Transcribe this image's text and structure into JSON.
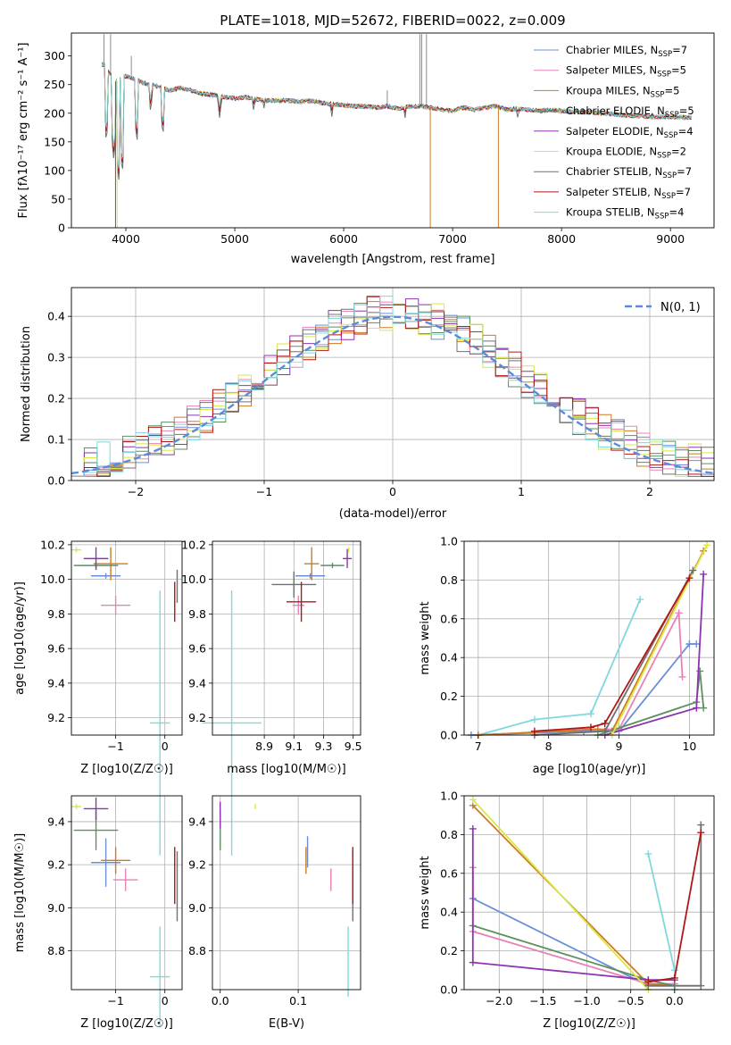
{
  "colors": {
    "chabrier_miles": "#6a8fd8",
    "salpeter_miles": "#e882b8",
    "kroupa_miles": "#cf7b22",
    "chabrier_elodie": "#5e8f5e",
    "salpeter_elodie": "#8e34b0",
    "kroupa_elodie": "#d8e84a",
    "chabrier_stelib": "#707070",
    "salpeter_stelib": "#b01818",
    "kroupa_stelib": "#7fd8dc",
    "grid": "#b0b0b0",
    "normal": "#5b8bd9"
  },
  "chart_data": [
    {
      "id": "spectrum",
      "type": "line",
      "title": "PLATE=1018, MJD=52672, FIBERID=0022, z=0.009",
      "xlabel": "wavelength [Angstrom, rest frame]",
      "ylabel": "Flux [fλ10⁻¹⁷ erg cm⁻² s⁻¹ A⁻¹]",
      "xlim": [
        3500,
        9400
      ],
      "ylim": [
        0,
        340
      ],
      "xticks": [
        4000,
        5000,
        6000,
        7000,
        8000,
        9000
      ],
      "yticks": [
        0,
        50,
        100,
        150,
        200,
        250,
        300
      ],
      "legend_position": "upper right",
      "legend": [
        {
          "label": "Chabrier MILES, N",
          "sub": "SSP",
          "suffix": "=7",
          "color_key": "chabrier_miles"
        },
        {
          "label": "Salpeter MILES, N",
          "sub": "SSP",
          "suffix": "=5",
          "color_key": "salpeter_miles"
        },
        {
          "label": "Kroupa MILES, N",
          "sub": "SSP",
          "suffix": "=5",
          "color_key": "kroupa_miles"
        },
        {
          "label": "Chabrier ELODIE, N",
          "sub": "SSP",
          "suffix": "=5",
          "color_key": "chabrier_elodie"
        },
        {
          "label": "Salpeter ELODIE, N",
          "sub": "SSP",
          "suffix": "=4",
          "color_key": "salpeter_elodie"
        },
        {
          "label": "Kroupa ELODIE, N",
          "sub": "SSP",
          "suffix": "=2",
          "color_key": "kroupa_elodie"
        },
        {
          "label": "Chabrier STELIB, N",
          "sub": "SSP",
          "suffix": "=7",
          "color_key": "chabrier_stelib"
        },
        {
          "label": "Salpeter STELIB, N",
          "sub": "SSP",
          "suffix": "=7",
          "color_key": "salpeter_stelib"
        },
        {
          "label": "Kroupa STELIB, N",
          "sub": "SSP",
          "suffix": "=4",
          "color_key": "kroupa_stelib"
        }
      ],
      "continuum": [
        [
          3800,
          285
        ],
        [
          3900,
          255
        ],
        [
          4000,
          265
        ],
        [
          4100,
          258
        ],
        [
          4200,
          250
        ],
        [
          4300,
          247
        ],
        [
          4400,
          240
        ],
        [
          4500,
          244
        ],
        [
          4600,
          240
        ],
        [
          4700,
          234
        ],
        [
          4800,
          232
        ],
        [
          4900,
          228
        ],
        [
          5000,
          226
        ],
        [
          5100,
          228
        ],
        [
          5200,
          224
        ],
        [
          5300,
          222
        ],
        [
          5400,
          222
        ],
        [
          5500,
          222
        ],
        [
          5600,
          220
        ],
        [
          5700,
          222
        ],
        [
          5800,
          218
        ],
        [
          5900,
          216
        ],
        [
          6000,
          214
        ],
        [
          6100,
          212
        ],
        [
          6200,
          212
        ],
        [
          6300,
          210
        ],
        [
          6400,
          212
        ],
        [
          6500,
          208
        ],
        [
          6600,
          212
        ],
        [
          6700,
          212
        ],
        [
          6800,
          210
        ],
        [
          6900,
          206
        ],
        [
          7000,
          204
        ],
        [
          7100,
          210
        ],
        [
          7200,
          206
        ],
        [
          7300,
          210
        ],
        [
          7400,
          212
        ],
        [
          7500,
          206
        ],
        [
          7600,
          208
        ],
        [
          7700,
          206
        ],
        [
          7800,
          204
        ],
        [
          7900,
          206
        ],
        [
          8000,
          204
        ],
        [
          8200,
          202
        ],
        [
          8400,
          200
        ],
        [
          8600,
          196
        ],
        [
          8800,
          194
        ],
        [
          9000,
          194
        ],
        [
          9200,
          192
        ]
      ],
      "absorption_lines": [
        [
          3820,
          150
        ],
        [
          3889,
          120
        ],
        [
          3934,
          80
        ],
        [
          3968,
          95
        ],
        [
          4102,
          150
        ],
        [
          4227,
          200
        ],
        [
          4340,
          160
        ],
        [
          4861,
          190
        ],
        [
          5175,
          200
        ],
        [
          5270,
          205
        ],
        [
          5890,
          190
        ],
        [
          6563,
          190
        ],
        [
          7600,
          185
        ]
      ],
      "emission_spikes": [
        [
          3800,
          338
        ],
        [
          3860,
          338
        ],
        [
          4050,
          300
        ],
        [
          6700,
          338
        ],
        [
          6716,
          338
        ],
        [
          6760,
          338
        ],
        [
          6400,
          240
        ]
      ]
    },
    {
      "id": "residuals",
      "type": "step",
      "xlabel": "(data-model)/error",
      "ylabel": "Normed distribution",
      "xlim": [
        -2.5,
        2.5
      ],
      "ylim": [
        0,
        0.47
      ],
      "xticks": [
        -2,
        -1,
        0,
        1,
        2
      ],
      "yticks": [
        0.0,
        0.1,
        0.2,
        0.3,
        0.4
      ],
      "normal_label": "N(0, 1)",
      "normal_mean": 0,
      "normal_sigma": 1
    },
    {
      "id": "age_vs_Z",
      "type": "errorbar",
      "xlabel": "Z [log10(Z/Z☉)]",
      "ylabel": "age  [log10(age/yr)]",
      "xlim": [
        -1.9,
        0.35
      ],
      "ylim": [
        9.1,
        10.22
      ],
      "xticks": [
        -1,
        0
      ],
      "yticks": [
        9.2,
        9.4,
        9.6,
        9.8,
        10.0,
        10.2
      ],
      "points": [
        {
          "k": "chabrier_miles",
          "x": -1.2,
          "xe": 0.3,
          "y": 10.02,
          "ye": 0.0
        },
        {
          "k": "salpeter_miles",
          "x": -1.0,
          "xe": 0.3,
          "y": 9.85,
          "ye": 0.04
        },
        {
          "k": "kroupa_miles",
          "x": -1.1,
          "xe": 0.35,
          "y": 10.09,
          "ye": 0.08
        },
        {
          "k": "chabrier_elodie",
          "x": -1.4,
          "xe": 0.45,
          "y": 10.08,
          "ye": 0.0
        },
        {
          "k": "salpeter_elodie",
          "x": -1.4,
          "xe": 0.25,
          "y": 10.12,
          "ye": 0.05
        },
        {
          "k": "kroupa_elodie",
          "x": -1.8,
          "xe": 0.1,
          "y": 10.17,
          "ye": 0.0
        },
        {
          "k": "chabrier_stelib",
          "x": 0.25,
          "xe": 0.0,
          "y": 9.96,
          "ye": 0.08
        },
        {
          "k": "salpeter_stelib",
          "x": 0.2,
          "xe": 0.0,
          "y": 9.87,
          "ye": 0.1
        },
        {
          "k": "kroupa_stelib",
          "x": -0.1,
          "xe": 0.2,
          "y": 9.17,
          "ye": 0.75
        }
      ]
    },
    {
      "id": "age_vs_mass",
      "type": "errorbar",
      "xlabel": "mass [log10(M/M☉)]",
      "ylabel": "",
      "xlim": [
        8.55,
        9.55
      ],
      "ylim": [
        9.1,
        10.22
      ],
      "xticks": [
        8.9,
        9.1,
        9.3,
        9.5
      ],
      "yticks": [
        9.2,
        9.4,
        9.6,
        9.8,
        10.0,
        10.2
      ],
      "points": [
        {
          "k": "chabrier_miles",
          "x": 9.21,
          "xe": 0.1,
          "y": 10.02,
          "ye": 0.0
        },
        {
          "k": "salpeter_miles",
          "x": 9.13,
          "xe": 0.04,
          "y": 9.85,
          "ye": 0.04
        },
        {
          "k": "kroupa_miles",
          "x": 9.22,
          "xe": 0.05,
          "y": 10.09,
          "ye": 0.08
        },
        {
          "k": "chabrier_elodie",
          "x": 9.36,
          "xe": 0.08,
          "y": 10.08,
          "ye": 0.0
        },
        {
          "k": "salpeter_elodie",
          "x": 9.46,
          "xe": 0.03,
          "y": 10.12,
          "ye": 0.04
        },
        {
          "k": "kroupa_elodie",
          "x": 9.47,
          "xe": 0.0,
          "y": 10.17,
          "ye": 0.0
        },
        {
          "k": "chabrier_stelib",
          "x": 9.1,
          "xe": 0.15,
          "y": 9.97,
          "ye": 0.06
        },
        {
          "k": "salpeter_stelib",
          "x": 9.15,
          "xe": 0.1,
          "y": 9.87,
          "ye": 0.1
        },
        {
          "k": "kroupa_stelib",
          "x": 8.68,
          "xe": 0.2,
          "y": 9.17,
          "ye": 0.75
        }
      ]
    },
    {
      "id": "weight_vs_age",
      "type": "line",
      "xlabel": "age  [log10(age/yr)]",
      "ylabel": "mass weight",
      "xlim": [
        6.8,
        10.35
      ],
      "ylim": [
        0,
        1.0
      ],
      "xticks": [
        7,
        8,
        9,
        10
      ],
      "yticks": [
        0.0,
        0.2,
        0.4,
        0.6,
        0.8,
        1.0
      ],
      "series": [
        {
          "k": "kroupa_stelib",
          "x": [
            7.0,
            7.8,
            8.6,
            9.3
          ],
          "y": [
            0.0,
            0.08,
            0.11,
            0.7
          ]
        },
        {
          "k": "chabrier_miles",
          "x": [
            6.9,
            8.5,
            9.0,
            10.0,
            10.1
          ],
          "y": [
            0.0,
            0.02,
            0.02,
            0.47,
            0.47
          ]
        },
        {
          "k": "salpeter_miles",
          "x": [
            7.0,
            8.6,
            9.0,
            9.85,
            9.9
          ],
          "y": [
            0.0,
            0.03,
            0.03,
            0.63,
            0.3
          ]
        },
        {
          "k": "kroupa_miles",
          "x": [
            7.0,
            8.7,
            8.9,
            10.2
          ],
          "y": [
            0.0,
            0.03,
            0.02,
            0.95
          ]
        },
        {
          "k": "chabrier_elodie",
          "x": [
            8.7,
            10.1,
            10.15,
            10.2
          ],
          "y": [
            0.0,
            0.17,
            0.33,
            0.14
          ]
        },
        {
          "k": "salpeter_elodie",
          "x": [
            8.8,
            10.1,
            10.2
          ],
          "y": [
            0.0,
            0.14,
            0.83
          ]
        },
        {
          "k": "kroupa_elodie",
          "x": [
            8.9,
            10.25
          ],
          "y": [
            0.0,
            0.98
          ]
        },
        {
          "k": "chabrier_stelib",
          "x": [
            7.8,
            8.8,
            10.05
          ],
          "y": [
            0.0,
            0.02,
            0.85
          ]
        },
        {
          "k": "salpeter_stelib",
          "x": [
            7.8,
            8.6,
            8.8,
            10.0
          ],
          "y": [
            0.02,
            0.04,
            0.06,
            0.81
          ]
        }
      ]
    },
    {
      "id": "mass_vs_Z",
      "type": "errorbar",
      "xlabel": "Z [log10(Z/Z☉)]",
      "ylabel": "mass [log10(M/M☉)]",
      "xlim": [
        -1.9,
        0.35
      ],
      "ylim": [
        8.62,
        9.52
      ],
      "xticks": [
        -1,
        0
      ],
      "yticks": [
        8.8,
        9.0,
        9.2,
        9.4
      ],
      "points": [
        {
          "k": "chabrier_miles",
          "x": -1.2,
          "xe": 0.3,
          "y": 9.21,
          "ye": 0.1
        },
        {
          "k": "salpeter_miles",
          "x": -0.8,
          "xe": 0.25,
          "y": 9.13,
          "ye": 0.04
        },
        {
          "k": "kroupa_miles",
          "x": -1.0,
          "xe": 0.3,
          "y": 9.22,
          "ye": 0.05
        },
        {
          "k": "chabrier_elodie",
          "x": -1.4,
          "xe": 0.45,
          "y": 9.36,
          "ye": 0.08
        },
        {
          "k": "salpeter_elodie",
          "x": -1.4,
          "xe": 0.25,
          "y": 9.46,
          "ye": 0.04
        },
        {
          "k": "kroupa_elodie",
          "x": -1.8,
          "xe": 0.1,
          "y": 9.47,
          "ye": 0.0
        },
        {
          "k": "chabrier_stelib",
          "x": 0.25,
          "xe": 0.0,
          "y": 9.1,
          "ye": 0.15
        },
        {
          "k": "salpeter_stelib",
          "x": 0.2,
          "xe": 0.0,
          "y": 9.15,
          "ye": 0.12
        },
        {
          "k": "kroupa_stelib",
          "x": -0.1,
          "xe": 0.2,
          "y": 8.68,
          "ye": 0.22
        }
      ]
    },
    {
      "id": "mass_vs_EBV",
      "type": "errorbar",
      "xlabel": "E(B-V)",
      "ylabel": "",
      "xlim": [
        -0.01,
        0.18
      ],
      "ylim": [
        8.62,
        9.52
      ],
      "xticks": [
        0.0,
        0.1
      ],
      "yticks": [
        8.8,
        9.0,
        9.2,
        9.4
      ],
      "points": [
        {
          "k": "chabrier_miles",
          "x": 0.112,
          "xe": 0.0,
          "y": 9.26,
          "ye": 0.06
        },
        {
          "k": "salpeter_miles",
          "x": 0.142,
          "xe": 0.0,
          "y": 9.13,
          "ye": 0.04
        },
        {
          "k": "kroupa_miles",
          "x": 0.11,
          "xe": 0.0,
          "y": 9.22,
          "ye": 0.05
        },
        {
          "k": "chabrier_elodie",
          "x": 0.0,
          "xe": 0.0,
          "y": 9.36,
          "ye": 0.08
        },
        {
          "k": "salpeter_elodie",
          "x": 0.0,
          "xe": 0.0,
          "y": 9.43,
          "ye": 0.05
        },
        {
          "k": "kroupa_elodie",
          "x": 0.045,
          "xe": 0.0,
          "y": 9.47,
          "ye": 0.0
        },
        {
          "k": "chabrier_stelib",
          "x": 0.17,
          "xe": 0.0,
          "y": 9.1,
          "ye": 0.15
        },
        {
          "k": "salpeter_stelib",
          "x": 0.17,
          "xe": 0.0,
          "y": 9.15,
          "ye": 0.12
        },
        {
          "k": "kroupa_stelib",
          "x": 0.164,
          "xe": 0.0,
          "y": 8.75,
          "ye": 0.15
        }
      ]
    },
    {
      "id": "weight_vs_Z",
      "type": "line",
      "xlabel": "Z [log10(Z/Z☉)]",
      "ylabel": "mass weight",
      "xlim": [
        -2.4,
        0.45
      ],
      "ylim": [
        0,
        1.0
      ],
      "xticks": [
        -2.0,
        -1.5,
        -1.0,
        -0.5,
        0.0
      ],
      "yticks": [
        0.0,
        0.2,
        0.4,
        0.6,
        0.8,
        1.0
      ],
      "series": [
        {
          "k": "kroupa_stelib",
          "x": [
            -0.3,
            0.0,
            0.0
          ],
          "y": [
            0.7,
            0.1,
            0.0
          ]
        },
        {
          "k": "chabrier_miles",
          "x": [
            -2.3,
            -0.3,
            0.0
          ],
          "y": [
            0.47,
            0.02,
            0.02
          ]
        },
        {
          "k": "salpeter_miles",
          "x": [
            -2.3,
            -2.3,
            -0.3,
            0.0
          ],
          "y": [
            0.63,
            0.3,
            0.03,
            0.03
          ]
        },
        {
          "k": "kroupa_miles",
          "x": [
            -2.3,
            -0.3,
            0.0
          ],
          "y": [
            0.95,
            0.03,
            0.02
          ]
        },
        {
          "k": "chabrier_elodie",
          "x": [
            -2.3,
            -0.3,
            0.0
          ],
          "y": [
            0.33,
            0.05,
            0.02
          ]
        },
        {
          "k": "salpeter_elodie",
          "x": [
            -2.3,
            -2.3,
            -0.3,
            0.0
          ],
          "y": [
            0.83,
            0.14,
            0.05,
            0.05
          ]
        },
        {
          "k": "kroupa_elodie",
          "x": [
            -2.3,
            -0.3
          ],
          "y": [
            0.98,
            0.0
          ]
        },
        {
          "k": "chabrier_stelib",
          "x": [
            0.3,
            0.3,
            0.0,
            -0.3
          ],
          "y": [
            0.85,
            0.02,
            0.02,
            0.02
          ]
        },
        {
          "k": "salpeter_stelib",
          "x": [
            0.3,
            0.0,
            -0.3
          ],
          "y": [
            0.81,
            0.06,
            0.04
          ]
        }
      ]
    }
  ]
}
